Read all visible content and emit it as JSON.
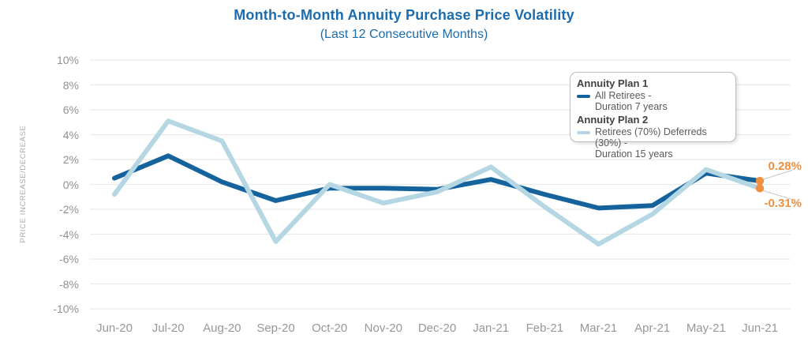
{
  "title": "Month-to-Month Annuity Purchase Price Volatility",
  "subtitle": "(Last 12 Consecutive Months)",
  "y_axis_title": "PRICE INCREASE/DECREASE",
  "legend": {
    "plan1": {
      "title": "Annuity Plan 1",
      "line1": "All Retirees -",
      "line2": "Duration 7 years"
    },
    "plan2": {
      "title": "Annuity Plan 2",
      "line1": "Retirees (70%) Deferreds (30%) -",
      "line2": "Duration 15 years"
    }
  },
  "annotations": {
    "plan1_last": "0.28%",
    "plan2_last": "-0.31%"
  },
  "colors": {
    "plan1": "#15639D",
    "plan2": "#B5D7E3",
    "accent_orange": "#EF9040",
    "title_blue": "#1A6CAE",
    "grid": "#E9EAEA",
    "axis_text": "#96989B",
    "leader": "#C6C7C9"
  },
  "chart_data": {
    "type": "line",
    "categories": [
      "Jun-20",
      "Jul-20",
      "Aug-20",
      "Sep-20",
      "Oct-20",
      "Nov-20",
      "Dec-20",
      "Jan-21",
      "Feb-21",
      "Mar-21",
      "Apr-21",
      "May-21",
      "Jun-21"
    ],
    "series": [
      {
        "name": "Annuity Plan 1: All Retirees - Duration 7 years",
        "color_key": "plan1",
        "values": [
          0.5,
          2.3,
          0.2,
          -1.3,
          -0.3,
          -0.3,
          -0.4,
          0.4,
          -0.8,
          -1.9,
          -1.7,
          0.9,
          0.28
        ]
      },
      {
        "name": "Annuity Plan 2: Retirees (70%) Deferreds (30%) - Duration 15 years",
        "color_key": "plan2",
        "values": [
          -0.8,
          5.1,
          3.5,
          -4.6,
          0.0,
          -1.5,
          -0.6,
          1.4,
          -1.8,
          -4.8,
          -2.4,
          1.2,
          -0.31
        ]
      }
    ],
    "ylabel": "PRICE INCREASE/DECREASE",
    "ylim": [
      -10,
      10
    ],
    "ytick_step": 2,
    "ytick_labels": [
      "10%",
      "8%",
      "6%",
      "4%",
      "2%",
      "0%",
      "-2%",
      "-4%",
      "-6%",
      "-8%",
      "-10%"
    ],
    "grid": true,
    "legend_position": "top-right",
    "end_point_labels": [
      "0.28%",
      "-0.31%"
    ]
  }
}
